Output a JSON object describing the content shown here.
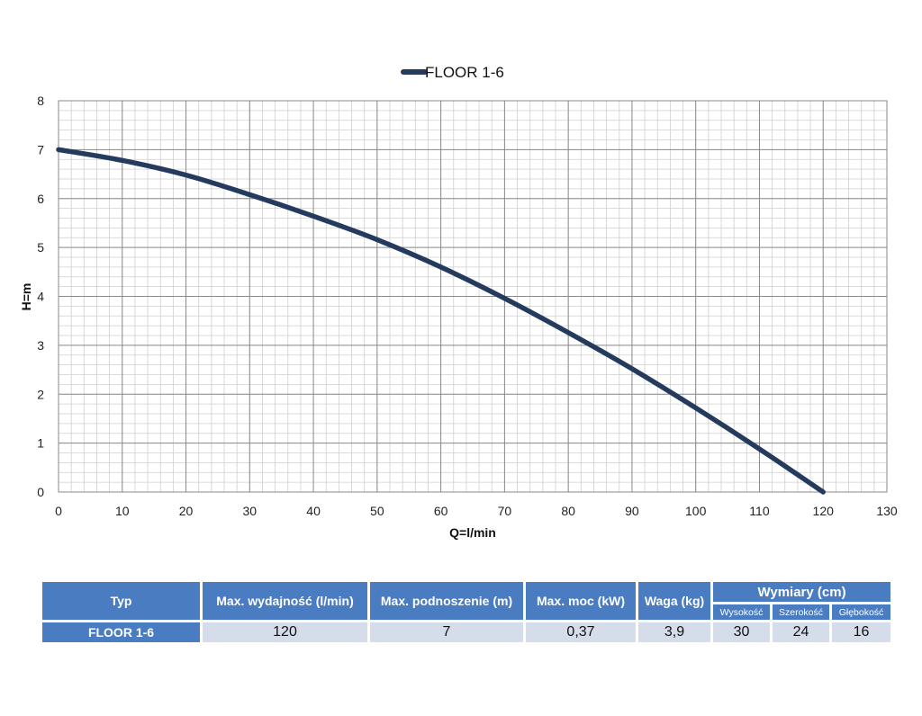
{
  "chart_data": {
    "type": "line",
    "xlabel": "Q=l/min",
    "ylabel": "H=m",
    "xlim": [
      0,
      130
    ],
    "ylim": [
      0,
      8
    ],
    "x_ticks": [
      0,
      10,
      20,
      30,
      40,
      50,
      60,
      70,
      80,
      90,
      100,
      110,
      120,
      130
    ],
    "y_ticks": [
      0,
      1,
      2,
      3,
      4,
      5,
      6,
      7,
      8
    ],
    "grid": true,
    "legend_position": "top-center",
    "series": [
      {
        "name": "FLOOR 1-6",
        "color": "#243b5e",
        "x": [
          0,
          10,
          20,
          30,
          40,
          50,
          60,
          70,
          80,
          90,
          100,
          110,
          120
        ],
        "y": [
          7.0,
          6.78,
          6.48,
          6.08,
          5.64,
          5.16,
          4.6,
          3.96,
          3.26,
          2.52,
          1.72,
          0.88,
          0.0
        ]
      }
    ]
  },
  "table": {
    "headers": {
      "typ": "Typ",
      "max_flow": "Max. wydajność (l/min)",
      "max_head": "Max. podnoszenie (m)",
      "max_power": "Max. moc (kW)",
      "weight": "Waga (kg)",
      "dimensions": "Wymiary (cm)",
      "height": "Wysokość",
      "width": "Szerokość",
      "depth": "Głębokość"
    },
    "row": {
      "typ": "FLOOR 1-6",
      "max_flow": "120",
      "max_head": "7",
      "max_power": "0,37",
      "weight": "3,9",
      "height": "30",
      "width": "24",
      "depth": "16"
    },
    "colors": {
      "header_bg": "#4a7cc2",
      "value_bg": "#d5dcea"
    }
  }
}
